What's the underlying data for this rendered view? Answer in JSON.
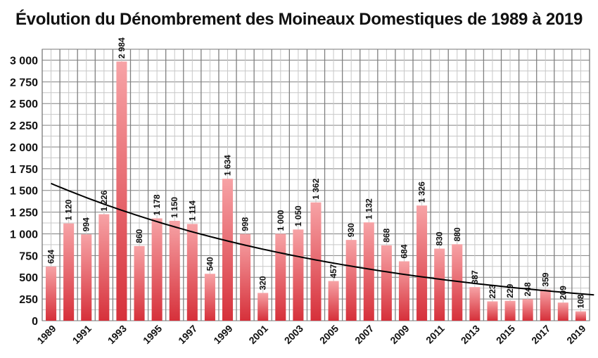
{
  "chart_data": {
    "type": "bar",
    "title": "Évolution du Dénombrement des Moineaux Domestiques de 1989 à 2019",
    "xlabel": "",
    "ylabel": "",
    "categories": [
      "1989",
      "1990",
      "1991",
      "1992",
      "1993",
      "1994",
      "1995",
      "1996",
      "1997",
      "1998",
      "1999",
      "2000",
      "2001",
      "2002",
      "2003",
      "2004",
      "2005",
      "2006",
      "2007",
      "2008",
      "2009",
      "2010",
      "2011",
      "2012",
      "2013",
      "2014",
      "2015",
      "2016",
      "2017",
      "2018",
      "2019"
    ],
    "values": [
      624,
      1120,
      994,
      1226,
      2984,
      860,
      1178,
      1150,
      1114,
      540,
      1634,
      998,
      320,
      1000,
      1050,
      1362,
      457,
      930,
      1132,
      868,
      684,
      1326,
      830,
      880,
      387,
      223,
      229,
      248,
      359,
      209,
      108
    ],
    "value_labels": [
      "624",
      "1 120",
      "994",
      "1 226",
      "2 984",
      "860",
      "1 178",
      "1 150",
      "1 114",
      "540",
      "1 634",
      "998",
      "320",
      "1 000",
      "1 050",
      "1 362",
      "457",
      "930",
      "1 132",
      "868",
      "684",
      "1 326",
      "830",
      "880",
      "387",
      "223",
      "229",
      "248",
      "359",
      "209",
      "108"
    ],
    "x_tick_labels": [
      "1989",
      "1991",
      "1993",
      "1995",
      "1997",
      "1999",
      "2001",
      "2003",
      "2005",
      "2007",
      "2009",
      "2011",
      "2013",
      "2015",
      "2017",
      "2019"
    ],
    "y_ticks": [
      0,
      250,
      500,
      750,
      1000,
      1250,
      1500,
      1750,
      2000,
      2250,
      2500,
      2750,
      3000
    ],
    "y_tick_labels": [
      "0",
      "250",
      "500",
      "750",
      "1 000",
      "1 250",
      "1 500",
      "1 750",
      "2 000",
      "2 250",
      "2 500",
      "2 750",
      "3 000"
    ],
    "ylim": [
      0,
      3125
    ],
    "grid": true,
    "trendline": {
      "type": "exponential",
      "start_value": 1580,
      "end_value": 310
    },
    "colors": {
      "bar_top": "#f7a3a6",
      "bar_bottom": "#d6303a",
      "trend": "#000000",
      "grid_major": "#808080",
      "grid_minor": "#c8c8c8"
    }
  }
}
